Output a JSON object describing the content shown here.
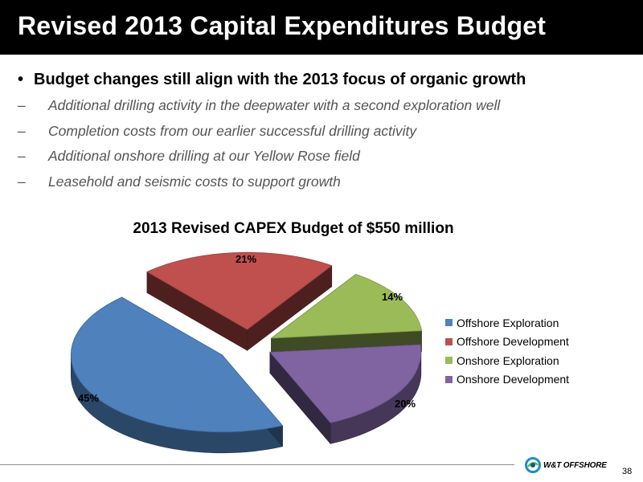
{
  "slide": {
    "title": "Revised 2013 Capital Expenditures Budget",
    "bullet_marker": "•",
    "dash_marker": "–",
    "main_bullet": "Budget changes still align with the 2013 focus of organic growth",
    "sub_bullets": [
      "Additional drilling activity in the deepwater with a second exploration well",
      "Completion costs from our earlier successful drilling activity",
      "Additional onshore drilling at our Yellow Rose field",
      "Leasehold and seismic costs to support growth"
    ],
    "page_number": "38",
    "logo_text": "W&T OFFSHORE"
  },
  "chart_data": {
    "type": "pie",
    "title": "2013 Revised CAPEX Budget of $550 million",
    "categories": [
      "Offshore Exploration",
      "Offshore Development",
      "Onshore Exploration",
      "Onshore Development"
    ],
    "values": [
      45,
      21,
      14,
      20
    ],
    "labels": [
      "45%",
      "21%",
      "14%",
      "20%"
    ],
    "colors": [
      "#4f81bd",
      "#c0504d",
      "#9bbb59",
      "#8064a2"
    ],
    "exploded": true,
    "three_d": true,
    "legend_position": "right"
  }
}
